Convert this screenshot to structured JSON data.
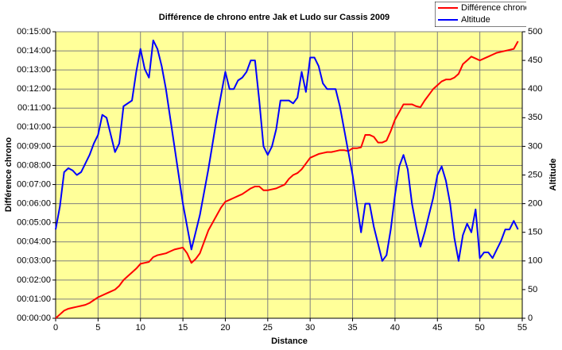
{
  "chart_data": {
    "type": "line",
    "title": "Différence de chrono entre Jak et Ludo sur Cassis 2009",
    "xlabel": "Distance",
    "ylabel": "Différence chrono",
    "y2label": "Altitude",
    "legend": "top-right",
    "grid": true,
    "xlim": [
      0,
      55
    ],
    "xticks": [
      0,
      5,
      10,
      15,
      20,
      25,
      30,
      35,
      40,
      45,
      50,
      55
    ],
    "ylim": [
      0,
      15
    ],
    "yticks": [
      {
        "value": 0,
        "label": "00:00:00"
      },
      {
        "value": 1,
        "label": "00:01:00"
      },
      {
        "value": 2,
        "label": "00:02:00"
      },
      {
        "value": 3,
        "label": "00:03:00"
      },
      {
        "value": 4,
        "label": "00:04:00"
      },
      {
        "value": 5,
        "label": "00:05:00"
      },
      {
        "value": 6,
        "label": "00:06:00"
      },
      {
        "value": 7,
        "label": "00:07:00"
      },
      {
        "value": 8,
        "label": "00:08:00"
      },
      {
        "value": 9,
        "label": "00:09:00"
      },
      {
        "value": 10,
        "label": "00:10:00"
      },
      {
        "value": 11,
        "label": "00:11:00"
      },
      {
        "value": 12,
        "label": "00:12:00"
      },
      {
        "value": 13,
        "label": "00:13:00"
      },
      {
        "value": 14,
        "label": "00:14:00"
      },
      {
        "value": 15,
        "label": "00:15:00"
      }
    ],
    "y2lim": [
      0,
      500
    ],
    "y2ticks": [
      0,
      50,
      100,
      150,
      200,
      250,
      300,
      350,
      400,
      450,
      500
    ],
    "x": [
      0,
      0.5,
      1,
      1.5,
      2,
      2.5,
      3,
      3.5,
      4,
      4.5,
      5,
      5.5,
      6,
      6.5,
      7,
      7.5,
      8,
      8.5,
      9,
      9.5,
      10,
      10.5,
      11,
      11.5,
      12,
      12.5,
      13,
      13.5,
      14,
      14.5,
      15,
      15.5,
      16,
      16.5,
      17,
      17.5,
      18,
      18.5,
      19,
      19.5,
      20,
      20.5,
      21,
      21.5,
      22,
      22.5,
      23,
      23.5,
      24,
      24.5,
      25,
      25.5,
      26,
      26.5,
      27,
      27.5,
      28,
      28.5,
      29,
      29.5,
      30,
      30.5,
      31,
      31.5,
      32,
      32.5,
      33,
      33.5,
      34,
      34.5,
      35,
      35.5,
      36,
      36.5,
      37,
      37.5,
      38,
      38.5,
      39,
      39.5,
      40,
      40.5,
      41,
      41.5,
      42,
      42.5,
      43,
      43.5,
      44,
      44.5,
      45,
      45.5,
      46,
      46.5,
      47,
      47.5,
      48,
      48.5,
      49,
      49.5,
      50,
      50.5,
      51,
      51.5,
      52,
      52.5,
      53,
      53.5,
      54,
      54.5
    ],
    "series": [
      {
        "name": "Différence chrono",
        "color": "#ff0000",
        "values": [
          0,
          0.2,
          0.4,
          0.5,
          0.55,
          0.6,
          0.65,
          0.7,
          0.8,
          0.95,
          1.1,
          1.2,
          1.3,
          1.4,
          1.5,
          1.7,
          2.0,
          2.2,
          2.4,
          2.6,
          2.85,
          2.9,
          2.95,
          3.2,
          3.3,
          3.35,
          3.4,
          3.5,
          3.6,
          3.65,
          3.7,
          3.4,
          2.9,
          3.1,
          3.4,
          4.0,
          4.6,
          5.0,
          5.4,
          5.8,
          6.1,
          6.2,
          6.3,
          6.4,
          6.5,
          6.65,
          6.8,
          6.9,
          6.9,
          6.7,
          6.7,
          6.75,
          6.8,
          6.9,
          7.0,
          7.3,
          7.5,
          7.6,
          7.8,
          8.1,
          8.4,
          8.5,
          8.6,
          8.65,
          8.7,
          8.7,
          8.75,
          8.8,
          8.8,
          8.75,
          8.9,
          8.9,
          8.95,
          9.6,
          9.6,
          9.5,
          9.2,
          9.2,
          9.3,
          9.8,
          10.4,
          10.8,
          11.2,
          11.2,
          11.2,
          11.1,
          11.05,
          11.4,
          11.7,
          12.0,
          12.2,
          12.4,
          12.5,
          12.5,
          12.6,
          12.8,
          13.3,
          13.5,
          13.7,
          13.6,
          13.5,
          13.6,
          13.7,
          13.8,
          13.9,
          13.95,
          14.0,
          14.05,
          14.1,
          14.5
        ]
      },
      {
        "name": "Altitude",
        "color": "#0000ff",
        "axis": "y2",
        "values": [
          155,
          195,
          255,
          262,
          258,
          250,
          255,
          270,
          285,
          305,
          320,
          355,
          350,
          320,
          290,
          305,
          370,
          375,
          380,
          430,
          470,
          435,
          420,
          485,
          470,
          440,
          400,
          350,
          300,
          250,
          200,
          160,
          120,
          150,
          180,
          220,
          260,
          305,
          350,
          390,
          430,
          400,
          400,
          415,
          420,
          430,
          450,
          450,
          380,
          300,
          285,
          300,
          330,
          380,
          380,
          380,
          375,
          385,
          430,
          395,
          455,
          455,
          440,
          410,
          400,
          400,
          400,
          370,
          330,
          290,
          250,
          200,
          150,
          200,
          200,
          160,
          130,
          100,
          110,
          155,
          215,
          265,
          285,
          260,
          200,
          160,
          125,
          150,
          180,
          210,
          250,
          265,
          240,
          200,
          140,
          100,
          145,
          165,
          150,
          190,
          105,
          115,
          115,
          105,
          120,
          135,
          155,
          155,
          170,
          155
        ]
      }
    ]
  }
}
